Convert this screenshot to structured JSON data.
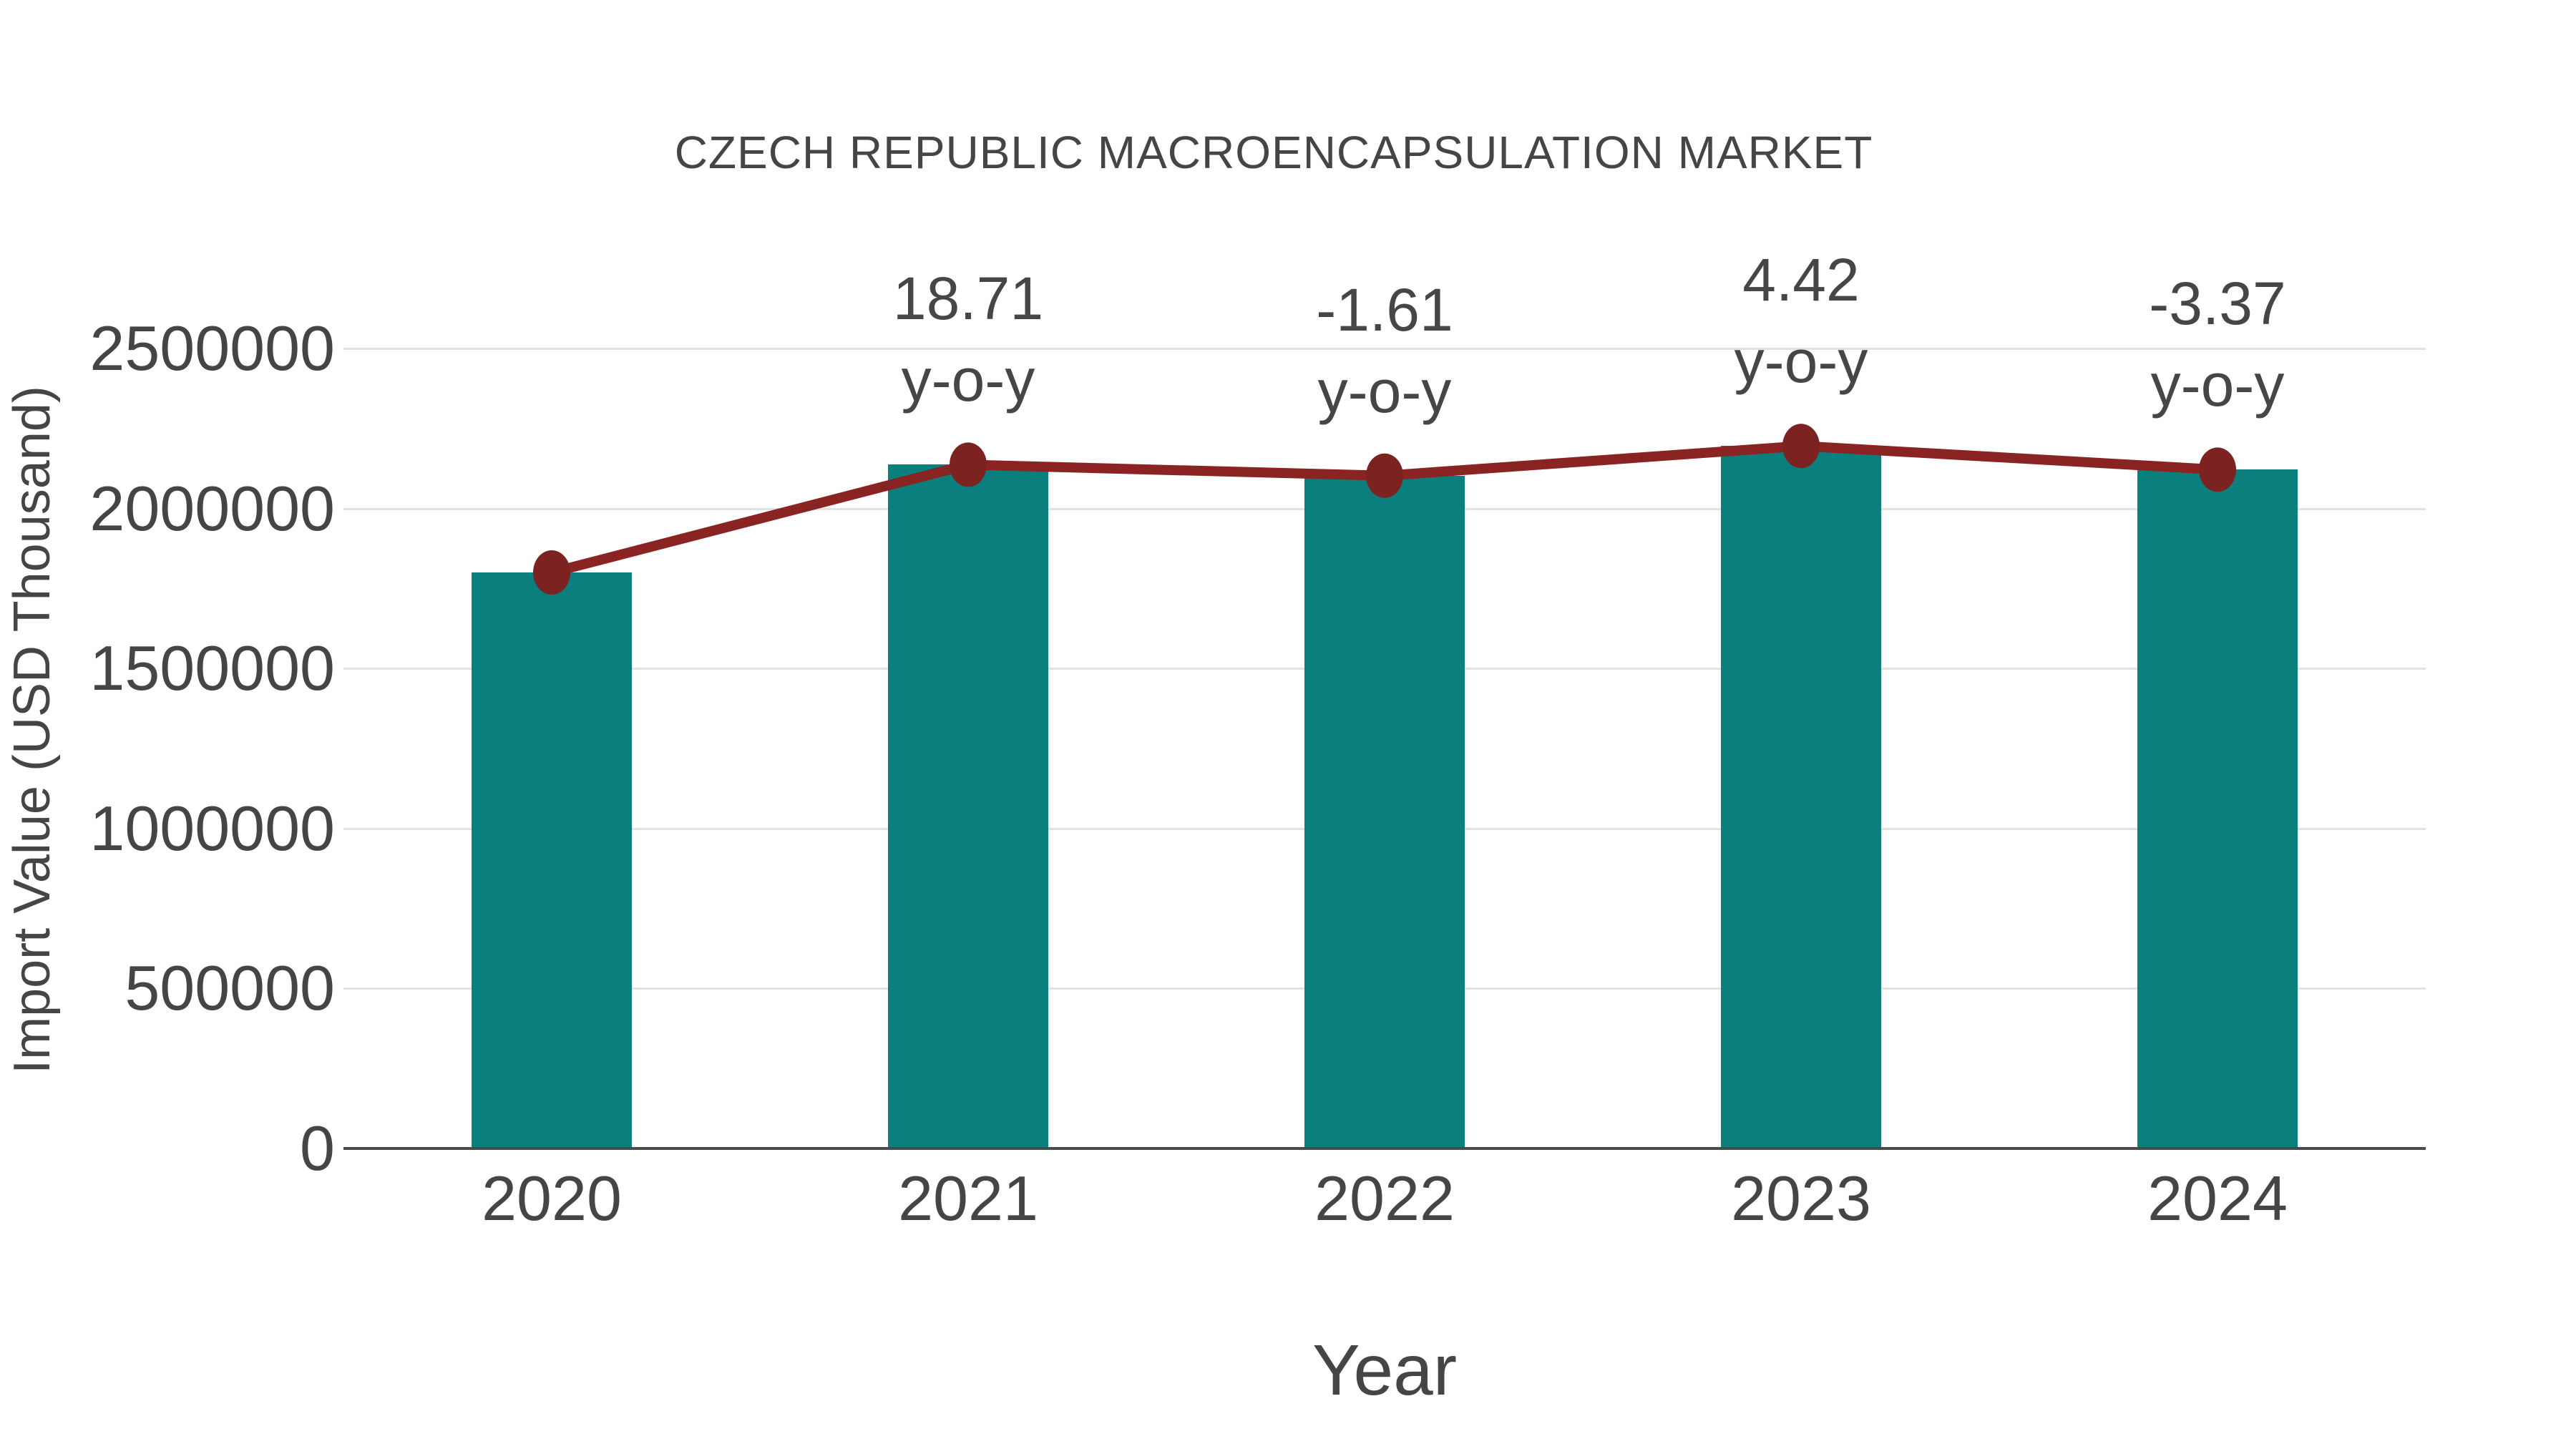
{
  "chart": {
    "title": "CZECH REPUBLIC MACROENCAPSULATION MARKET",
    "xlabel": "Year",
    "ylabel": "Import Value (USD Thousand)"
  },
  "chart_data": {
    "type": "bar",
    "title": "CZECH REPUBLIC MACROENCAPSULATION MARKET",
    "xlabel": "Year",
    "ylabel": "Import Value (USD Thousand)",
    "categories": [
      "2020",
      "2021",
      "2022",
      "2023",
      "2024"
    ],
    "series": [
      {
        "name": "Import Value (USD Thousand)",
        "type": "bar",
        "values": [
          1800000,
          2136800,
          2102400,
          2195300,
          2121300
        ]
      },
      {
        "name": "Import Value trend",
        "type": "line",
        "values": [
          1800000,
          2136800,
          2102400,
          2195300,
          2121300
        ]
      }
    ],
    "annotations": [
      {
        "category": "2021",
        "value_text": "18.71",
        "suffix_text": "y-o-y"
      },
      {
        "category": "2022",
        "value_text": "-1.61",
        "suffix_text": "y-o-y"
      },
      {
        "category": "2023",
        "value_text": "4.42",
        "suffix_text": "y-o-y"
      },
      {
        "category": "2024",
        "value_text": "-3.37",
        "suffix_text": "y-o-y"
      }
    ],
    "ytick_labels": [
      "0",
      "500000",
      "1000000",
      "1500000",
      "2000000",
      "2500000"
    ],
    "ylim": [
      0,
      2500000
    ],
    "grid": true,
    "legend": false
  },
  "colors": {
    "bar": "#0b7f7e",
    "line": "#8a2423",
    "marker": "#7c2221",
    "grid": "#e2e2e2",
    "axis": "#4a4a4a",
    "text": "#454545",
    "background": "#ffffff"
  }
}
